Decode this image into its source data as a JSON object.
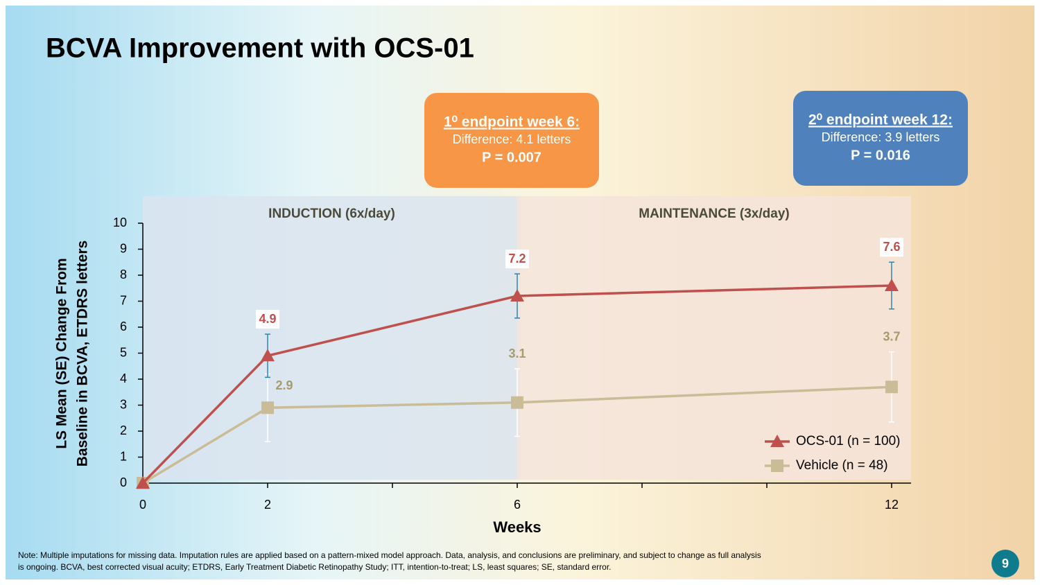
{
  "title": "BCVA Improvement with OCS-01",
  "callouts": [
    {
      "heading": "1⁰ endpoint week 6:",
      "lines": [
        "Difference: 4.1 letters",
        "P = 0.007"
      ],
      "color": "#f79646"
    },
    {
      "heading": "2⁰ endpoint week 12:",
      "lines": [
        "Difference: 3.9 letters",
        "P = 0.016"
      ],
      "color": "#4f81bd"
    }
  ],
  "chart_data": {
    "type": "line",
    "phases": [
      {
        "label": "INDUCTION (6x/day)",
        "from": 0,
        "to": 6,
        "color": "#dbe4ef"
      },
      {
        "label": "MAINTENANCE (3x/day)",
        "from": 6,
        "to": 12,
        "color": "#f5e4da"
      }
    ],
    "x": [
      0,
      2,
      6,
      12
    ],
    "xlim": [
      0,
      12
    ],
    "xticks": [
      0,
      2,
      6,
      12
    ],
    "xminor_ticks": [
      4,
      8,
      10
    ],
    "ylim": [
      0,
      10
    ],
    "yticks": [
      0,
      1,
      2,
      3,
      4,
      5,
      6,
      7,
      8,
      9,
      10
    ],
    "xlabel": "Weeks",
    "ylabel": [
      "LS Mean (SE) Change From",
      "Baseline in BCVA, ETDRS letters"
    ],
    "legend": "lower right",
    "series": [
      {
        "name": "OCS-01 (n = 100)",
        "color": "#c0504d",
        "marker": "triangle",
        "error_color": "#2e86ab",
        "values": [
          0,
          4.9,
          7.2,
          7.6
        ],
        "errors": [
          null,
          0.83,
          0.85,
          0.9
        ]
      },
      {
        "name": "Vehicle (n = 48)",
        "color": "#c9bc96",
        "marker": "square",
        "error_color": "#ffffff",
        "values": [
          0,
          2.9,
          3.1,
          3.7
        ],
        "errors": [
          null,
          1.3,
          1.3,
          1.35
        ]
      }
    ]
  },
  "footnote": [
    "Note: Multiple imputations for missing data. Imputation rules are applied based on a pattern-mixed model approach. Data, analysis, and conclusions are preliminary, and subject to change as full analysis",
    "is ongoing. BCVA, best corrected visual acuity; ETDRS, Early Treatment Diabetic Retinopathy Study; ITT, intention-to-treat; LS, least squares; SE, standard error."
  ],
  "page_number": "9"
}
